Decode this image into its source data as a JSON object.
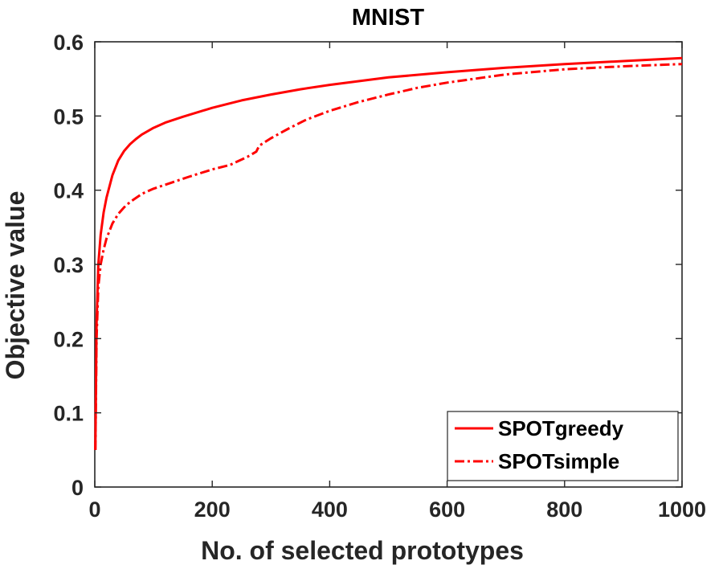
{
  "chart_data": {
    "type": "line",
    "title": "MNIST",
    "xlabel": "No. of selected prototypes",
    "ylabel": "Objective value",
    "xlim": [
      0,
      1000
    ],
    "ylim": [
      0,
      0.6
    ],
    "xticks": [
      0,
      200,
      400,
      600,
      800,
      1000
    ],
    "xtick_labels": [
      "0",
      "200",
      "400",
      "600",
      "800",
      "1000"
    ],
    "yticks": [
      0,
      0.1,
      0.2,
      0.3,
      0.4,
      0.5,
      0.6
    ],
    "ytick_labels": [
      "0",
      "0.1",
      "0.2",
      "0.3",
      "0.4",
      "0.5",
      "0.6"
    ],
    "grid": false,
    "legend_position": "bottom-right",
    "series": [
      {
        "name": "SPOTgreedy",
        "color": "#ff0000",
        "line_style": "solid",
        "x": [
          1,
          3,
          6,
          10,
          15,
          20,
          30,
          40,
          50,
          60,
          70,
          80,
          100,
          120,
          150,
          200,
          250,
          300,
          350,
          400,
          500,
          600,
          700,
          800,
          900,
          1000
        ],
        "y": [
          0.05,
          0.22,
          0.3,
          0.34,
          0.37,
          0.39,
          0.42,
          0.44,
          0.453,
          0.462,
          0.469,
          0.475,
          0.484,
          0.491,
          0.499,
          0.511,
          0.521,
          0.529,
          0.536,
          0.542,
          0.552,
          0.559,
          0.565,
          0.57,
          0.574,
          0.578
        ]
      },
      {
        "name": "SPOTsimple",
        "color": "#ff0000",
        "line_style": "dash-dot",
        "x": [
          1,
          3,
          6,
          10,
          15,
          20,
          30,
          40,
          50,
          60,
          80,
          100,
          130,
          160,
          200,
          230,
          260,
          275,
          280,
          300,
          330,
          360,
          400,
          450,
          500,
          550,
          600,
          700,
          800,
          900,
          1000
        ],
        "y": [
          0.05,
          0.2,
          0.27,
          0.3,
          0.32,
          0.335,
          0.355,
          0.368,
          0.377,
          0.384,
          0.395,
          0.402,
          0.41,
          0.418,
          0.428,
          0.434,
          0.445,
          0.452,
          0.46,
          0.47,
          0.483,
          0.495,
          0.507,
          0.519,
          0.529,
          0.538,
          0.545,
          0.556,
          0.563,
          0.567,
          0.57
        ]
      }
    ]
  }
}
